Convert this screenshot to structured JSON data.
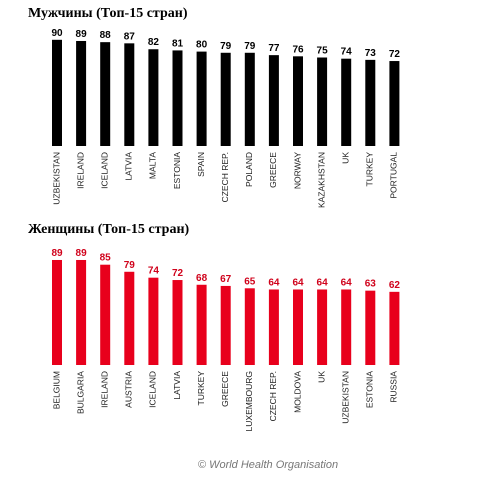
{
  "chart_data": [
    {
      "type": "bar",
      "title": "Мужчины (Топ-15 стран)",
      "color": "#000000",
      "label_color": "#000000",
      "categories": [
        "UZBEKISTAN",
        "IRELAND",
        "ICELAND",
        "LATVIA",
        "MALTA",
        "ESTONIA",
        "SPAIN",
        "CZECH REP.",
        "POLAND",
        "GREECE",
        "NORWAY",
        "KAZAKHSTAN",
        "UK",
        "TURKEY",
        "PORTUGAL"
      ],
      "values": [
        90,
        89,
        88,
        87,
        82,
        81,
        80,
        79,
        79,
        77,
        76,
        75,
        74,
        73,
        72
      ]
    },
    {
      "type": "bar",
      "title": "Женщины (Топ-15 стран)",
      "color": "#e8001c",
      "label_color": "#d0021b",
      "categories": [
        "BELGIUM",
        "BULGARIA",
        "IRELAND",
        "AUSTRIA",
        "ICELAND",
        "LATVIA",
        "TURKEY",
        "GREECE",
        "LUXEMBOURG",
        "CZECH REP.",
        "MOLDOVA",
        "UK",
        "UZBEKISTAN",
        "ESTONIA",
        "RUSSIA"
      ],
      "values": [
        89,
        89,
        85,
        79,
        74,
        72,
        68,
        67,
        65,
        64,
        64,
        64,
        64,
        63,
        62
      ]
    }
  ],
  "credit": "© World Health Organisation"
}
